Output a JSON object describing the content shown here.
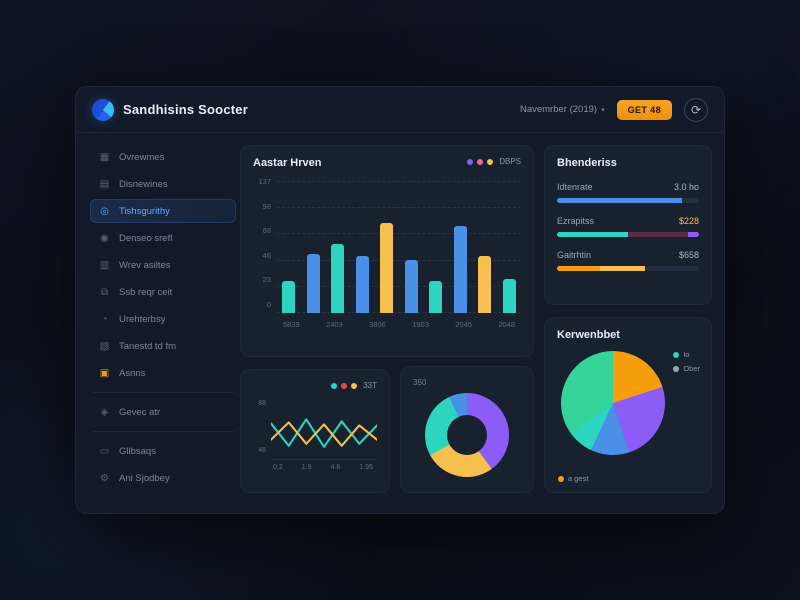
{
  "header": {
    "title": "Sandhisins Soocter",
    "period_label": "Navemrber (2019)",
    "period_chevron": "▾",
    "cta_label": "GET 48",
    "profile_glyph": "⟳"
  },
  "sidebar": {
    "items": [
      {
        "label": "Ovrewmes",
        "icon": "grid-icon",
        "glyph": "▦",
        "active": false,
        "accent": false
      },
      {
        "label": "Disnewines",
        "icon": "document-icon",
        "glyph": "▤",
        "active": false,
        "accent": false
      },
      {
        "label": "Tishsgurithy",
        "icon": "target-icon",
        "glyph": "◎",
        "active": true,
        "accent": false
      },
      {
        "label": "Denseo srefl",
        "icon": "user-icon",
        "glyph": "◉",
        "active": false,
        "accent": false
      },
      {
        "label": "Wrev asiltes",
        "icon": "chart-icon",
        "glyph": "▥",
        "active": false,
        "accent": false
      },
      {
        "label": "Ssb reqr ceit",
        "icon": "layers-icon",
        "glyph": "⧉",
        "active": false,
        "accent": false
      },
      {
        "label": "Urehterbsy",
        "icon": "bell-icon",
        "glyph": "◔",
        "active": false,
        "accent": false
      },
      {
        "label": "Tanestd td fm",
        "icon": "file-icon",
        "glyph": "▧",
        "active": false,
        "accent": false
      },
      {
        "label": "Asnns",
        "icon": "folder-icon",
        "glyph": "▣",
        "active": false,
        "accent": true
      },
      {
        "label": "Gevec atr",
        "icon": "tag-icon",
        "glyph": "◈",
        "active": false,
        "accent": false,
        "divider": true
      },
      {
        "label": "Gllbsaqs",
        "icon": "archive-icon",
        "glyph": "▭",
        "active": false,
        "accent": false,
        "divider": true
      },
      {
        "label": "Ani Sjodbey",
        "icon": "gear-icon",
        "glyph": "⚙",
        "active": false,
        "accent": false
      }
    ]
  },
  "bar_card": {
    "title": "Aastar Hrven",
    "legend_label": "DBPS",
    "legend_dots": [
      "#8b5cf6",
      "#ef6b9a",
      "#f5c04e"
    ]
  },
  "progress_card": {
    "title": "Bhenderiss"
  },
  "line_card": {
    "legend_label": "33T",
    "legend_dots": [
      "#2dd4bf",
      "#ef4444",
      "#f5c04e"
    ]
  },
  "donut_card": {
    "corner_label": "350"
  },
  "pie_card": {
    "title": "Kerwenbbet",
    "legend": [
      {
        "color": "#2dd4bf",
        "label": "Io"
      },
      {
        "color": "#9ca3af",
        "label": "Ober"
      }
    ],
    "footnote": {
      "color": "#f59e0b",
      "label": "a gest"
    }
  },
  "chart_data": [
    {
      "type": "bar",
      "title": "Aastar Hrven",
      "legend": "DBPS",
      "y_ticks": [
        "137",
        "98",
        "68",
        "46",
        "23",
        "0"
      ],
      "x_ticks": [
        "5839",
        "2403",
        "3806",
        "1903",
        "2045",
        "2048"
      ],
      "ylim": [
        0,
        100
      ],
      "grid": "dashed-horizontal",
      "bars": [
        {
          "value": 24,
          "color": "#2dd4bf"
        },
        {
          "value": 45,
          "color": "#4a90e8"
        },
        {
          "value": 52,
          "color": "#2dd4bf"
        },
        {
          "value": 43,
          "color": "#4a90e8"
        },
        {
          "value": 68,
          "color": "#f5c04e"
        },
        {
          "value": 40,
          "color": "#4a90e8"
        },
        {
          "value": 24,
          "color": "#2dd4bf"
        },
        {
          "value": 66,
          "color": "#4a90e8"
        },
        {
          "value": 43,
          "color": "#f5c04e"
        },
        {
          "value": 26,
          "color": "#2dd4bf"
        }
      ]
    },
    {
      "type": "table",
      "title": "Bhenderiss",
      "rows": [
        {
          "label": "Idtenrate",
          "value": "3.0 ho",
          "value_color": "#aab3c5",
          "segments": [
            {
              "color": "#4a90e8",
              "pct": 88
            }
          ]
        },
        {
          "label": "Ezrapitss",
          "value": "$228",
          "value_color": "#f5c04e",
          "segments": [
            {
              "color": "#2dd4bf",
              "pct": 50
            },
            {
              "color": "#5b2a45",
              "pct": 42
            },
            {
              "color": "#8b5cf6",
              "pct": 8
            }
          ]
        },
        {
          "label": "Gaitrhtin",
          "value": "$658",
          "value_color": "#aab3c5",
          "segments": [
            {
              "color": "#f59e0b",
              "pct": 30
            },
            {
              "color": "#f5c04e",
              "pct": 32
            }
          ]
        }
      ]
    },
    {
      "type": "line",
      "legend": "33T",
      "y_ticks": [
        "88",
        "48"
      ],
      "x_ticks": [
        "0.2",
        "1.9",
        "4.6",
        "1.95"
      ],
      "ylim": [
        0,
        100
      ],
      "series": [
        {
          "name": "teal",
          "color": "#2dd4bf",
          "values": [
            62,
            18,
            70,
            16,
            66,
            22,
            58
          ]
        },
        {
          "name": "yellow",
          "color": "#f5c04e",
          "values": [
            30,
            64,
            22,
            60,
            18,
            58,
            30
          ]
        }
      ]
    },
    {
      "type": "pie",
      "variant": "donut",
      "corner_label": "350",
      "slices": [
        {
          "label": "purple",
          "color": "#8b5cf6",
          "pct": 40
        },
        {
          "label": "yellow",
          "color": "#f5c04e",
          "pct": 27
        },
        {
          "label": "teal",
          "color": "#2dd4bf",
          "pct": 26
        },
        {
          "label": "blue",
          "color": "#4a90e8",
          "pct": 7
        }
      ]
    },
    {
      "type": "pie",
      "title": "Kerwenbbet",
      "slices": [
        {
          "label": "orange",
          "color": "#f59e0b",
          "pct": 20
        },
        {
          "label": "purple",
          "color": "#8b5cf6",
          "pct": 25
        },
        {
          "label": "blue",
          "color": "#4a90e8",
          "pct": 12
        },
        {
          "label": "teal",
          "color": "#2dd4bf",
          "pct": 8
        },
        {
          "label": "green",
          "color": "#34d399",
          "pct": 35
        }
      ]
    }
  ]
}
